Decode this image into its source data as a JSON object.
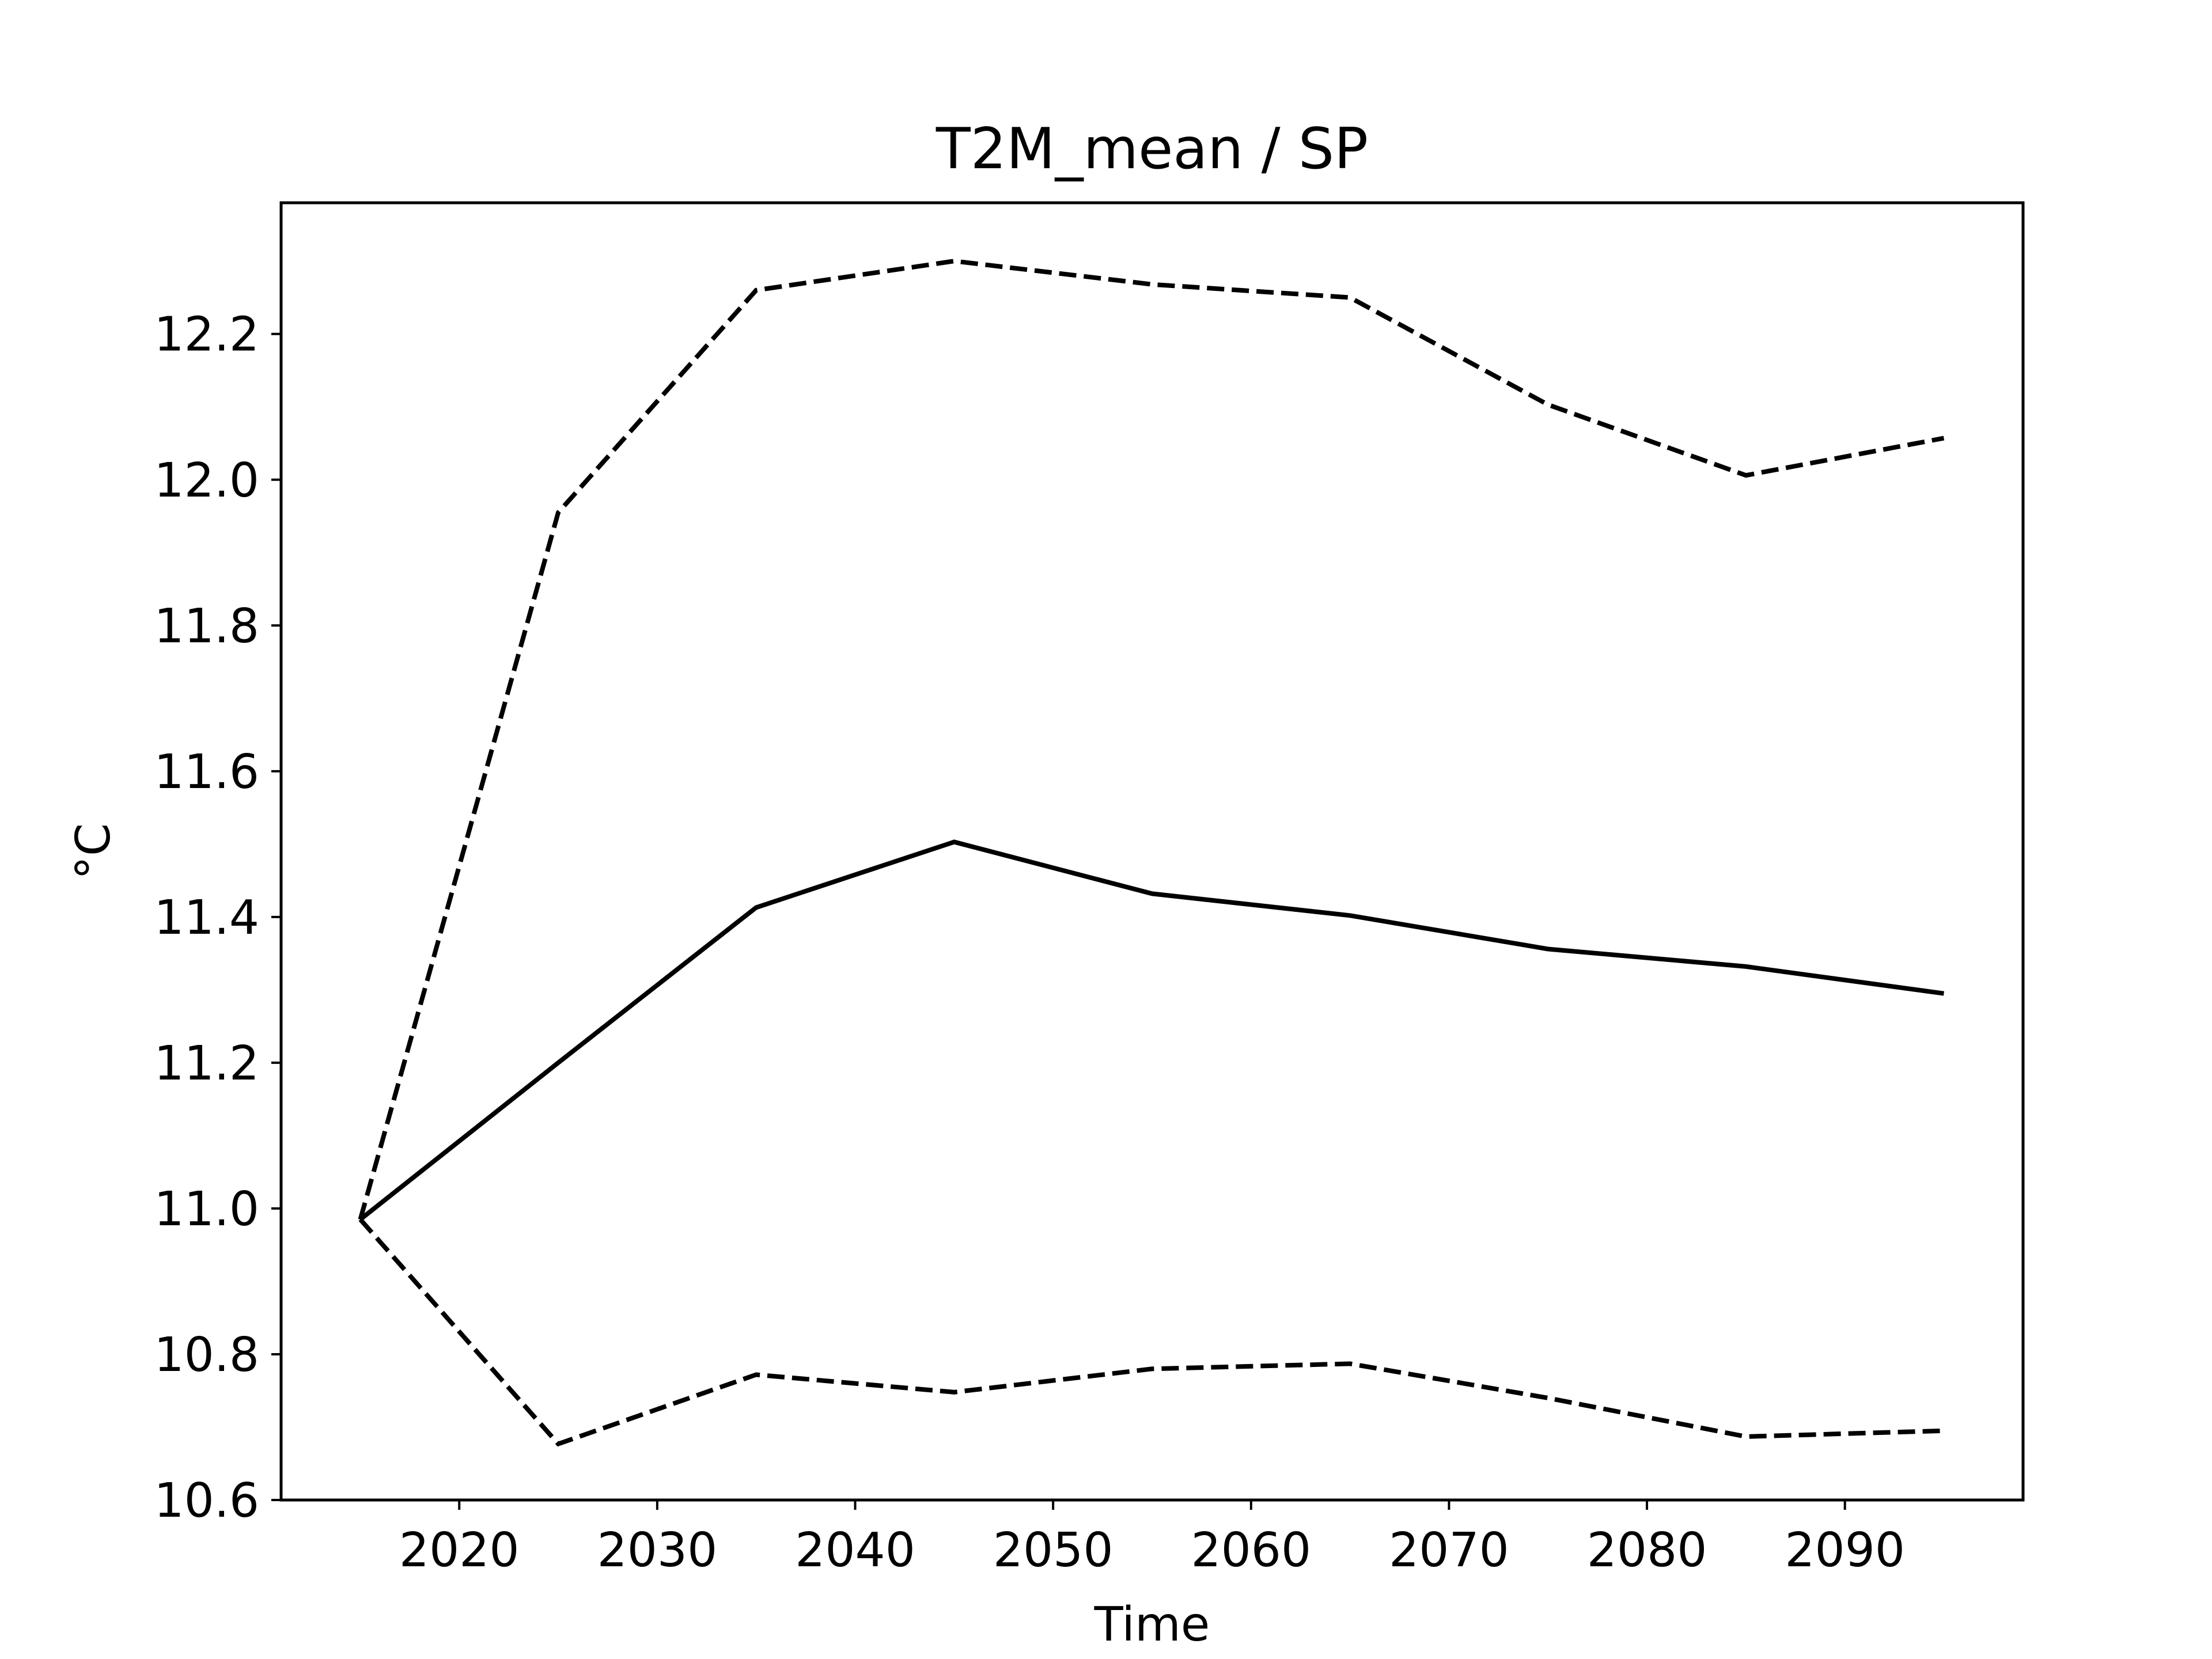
{
  "chart_data": {
    "type": "line",
    "title": "T2M_mean / SP",
    "xlabel": "Time",
    "ylabel": "°C",
    "xlim": [
      2011,
      2099
    ],
    "ylim": [
      10.6,
      12.38
    ],
    "xticks": [
      2020,
      2030,
      2040,
      2050,
      2060,
      2070,
      2080,
      2090
    ],
    "xtick_labels": [
      "2020",
      "2030",
      "2040",
      "2050",
      "2060",
      "2070",
      "2080",
      "2090"
    ],
    "yticks": [
      10.6,
      10.8,
      11.0,
      11.2,
      11.4,
      11.6,
      11.8,
      12.0,
      12.2
    ],
    "ytick_labels": [
      "10.6",
      "10.8",
      "11.0",
      "11.2",
      "11.4",
      "11.6",
      "11.8",
      "12.0",
      "12.2"
    ],
    "grid": false,
    "x": [
      2015,
      2025,
      2035,
      2045,
      2055,
      2065,
      2075,
      2085,
      2095
    ],
    "series": [
      {
        "color": "#000000",
        "linestyle": "dashed",
        "values": [
          10.985,
          11.955,
          12.26,
          12.3,
          12.268,
          12.25,
          12.103,
          12.006,
          12.057
        ]
      },
      {
        "color": "#000000",
        "linestyle": "solid",
        "values": [
          10.985,
          11.2,
          11.413,
          11.503,
          11.432,
          11.402,
          11.356,
          11.332,
          11.295
        ]
      },
      {
        "color": "#000000",
        "linestyle": "dashed",
        "values": [
          10.985,
          10.677,
          10.772,
          10.748,
          10.78,
          10.787,
          10.74,
          10.687,
          10.695
        ]
      }
    ]
  }
}
